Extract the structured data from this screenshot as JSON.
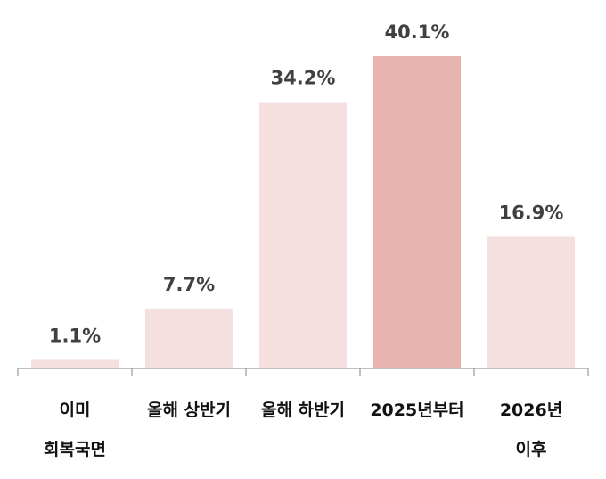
{
  "chart_data": {
    "type": "bar",
    "categories": [
      [
        "이미",
        "회복국면"
      ],
      [
        "올해 상반기"
      ],
      [
        "올해 하반기"
      ],
      [
        "2025년부터"
      ],
      [
        "2026년",
        "이후"
      ]
    ],
    "values": [
      1.1,
      7.7,
      34.2,
      40.1,
      16.9
    ],
    "value_labels": [
      "1.1%",
      "7.7%",
      "34.2%",
      "40.1%",
      "16.9%"
    ],
    "unit": "%",
    "ylim": [
      0,
      40.1
    ],
    "grid": false,
    "legend": "none",
    "colors": {
      "bar": "#f5e0df",
      "highlight": "#e8b4b0",
      "axis": "#9a9a9a",
      "value_text": "#404040",
      "category_text": "#111111"
    },
    "highlight_index": 3
  }
}
